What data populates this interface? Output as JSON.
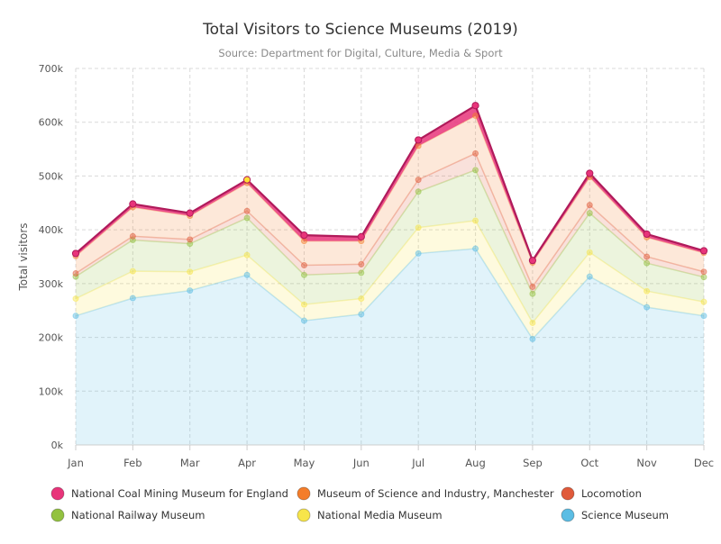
{
  "chart_data": {
    "type": "area",
    "stacked": true,
    "title": "Total Visitors to Science Museums (2019)",
    "subtitle": "Source: Department for Digital, Culture, Media & Sport",
    "xlabel": "",
    "ylabel": "Total visitors",
    "categories": [
      "Jan",
      "Feb",
      "Mar",
      "Apr",
      "May",
      "Jun",
      "Jul",
      "Aug",
      "Sep",
      "Oct",
      "Nov",
      "Dec"
    ],
    "ylim": [
      0,
      700000
    ],
    "yticks": [
      0,
      100000,
      200000,
      300000,
      400000,
      500000,
      600000,
      700000
    ],
    "ytick_labels": [
      "0k",
      "100k",
      "200k",
      "300k",
      "400k",
      "500k",
      "600k",
      "700k"
    ],
    "grid": true,
    "legend_position": "bottom",
    "highlighted_point": {
      "series": "National Coal Mining Museum for England",
      "category": "Apr"
    },
    "series": [
      {
        "name": "Science Museum",
        "color": "#5bbde4",
        "values": [
          240000,
          273000,
          287000,
          316000,
          231000,
          243000,
          356000,
          365000,
          197000,
          313000,
          256000,
          240000
        ]
      },
      {
        "name": "National Media Museum",
        "color": "#f7e54a",
        "values": [
          32000,
          50000,
          35000,
          37000,
          30000,
          29000,
          48000,
          52000,
          30000,
          45000,
          30000,
          26000
        ]
      },
      {
        "name": "National Railway Museum",
        "color": "#93c240",
        "values": [
          41000,
          58000,
          52000,
          69000,
          55000,
          48000,
          67000,
          94000,
          54000,
          73000,
          52000,
          46000
        ]
      },
      {
        "name": "Locomotion",
        "color": "#e05a3a",
        "values": [
          6000,
          7000,
          8000,
          13000,
          18000,
          16000,
          22000,
          31000,
          13000,
          15000,
          12000,
          10000
        ]
      },
      {
        "name": "Museum of Science and Industry, Manchester",
        "color": "#f47d2a",
        "values": [
          32000,
          54000,
          44000,
          52000,
          45000,
          43000,
          63000,
          70000,
          45000,
          52000,
          36000,
          35000
        ]
      },
      {
        "name": "National Coal Mining Museum for England",
        "color": "#e8347a",
        "values": [
          5000,
          6000,
          5000,
          6000,
          11000,
          8000,
          11000,
          19000,
          4000,
          7000,
          6000,
          4000
        ]
      }
    ],
    "legend_order": [
      "National Coal Mining Museum for England",
      "Museum of Science and Industry, Manchester",
      "Locomotion",
      "National Railway Museum",
      "National Media Museum",
      "Science Museum"
    ]
  }
}
